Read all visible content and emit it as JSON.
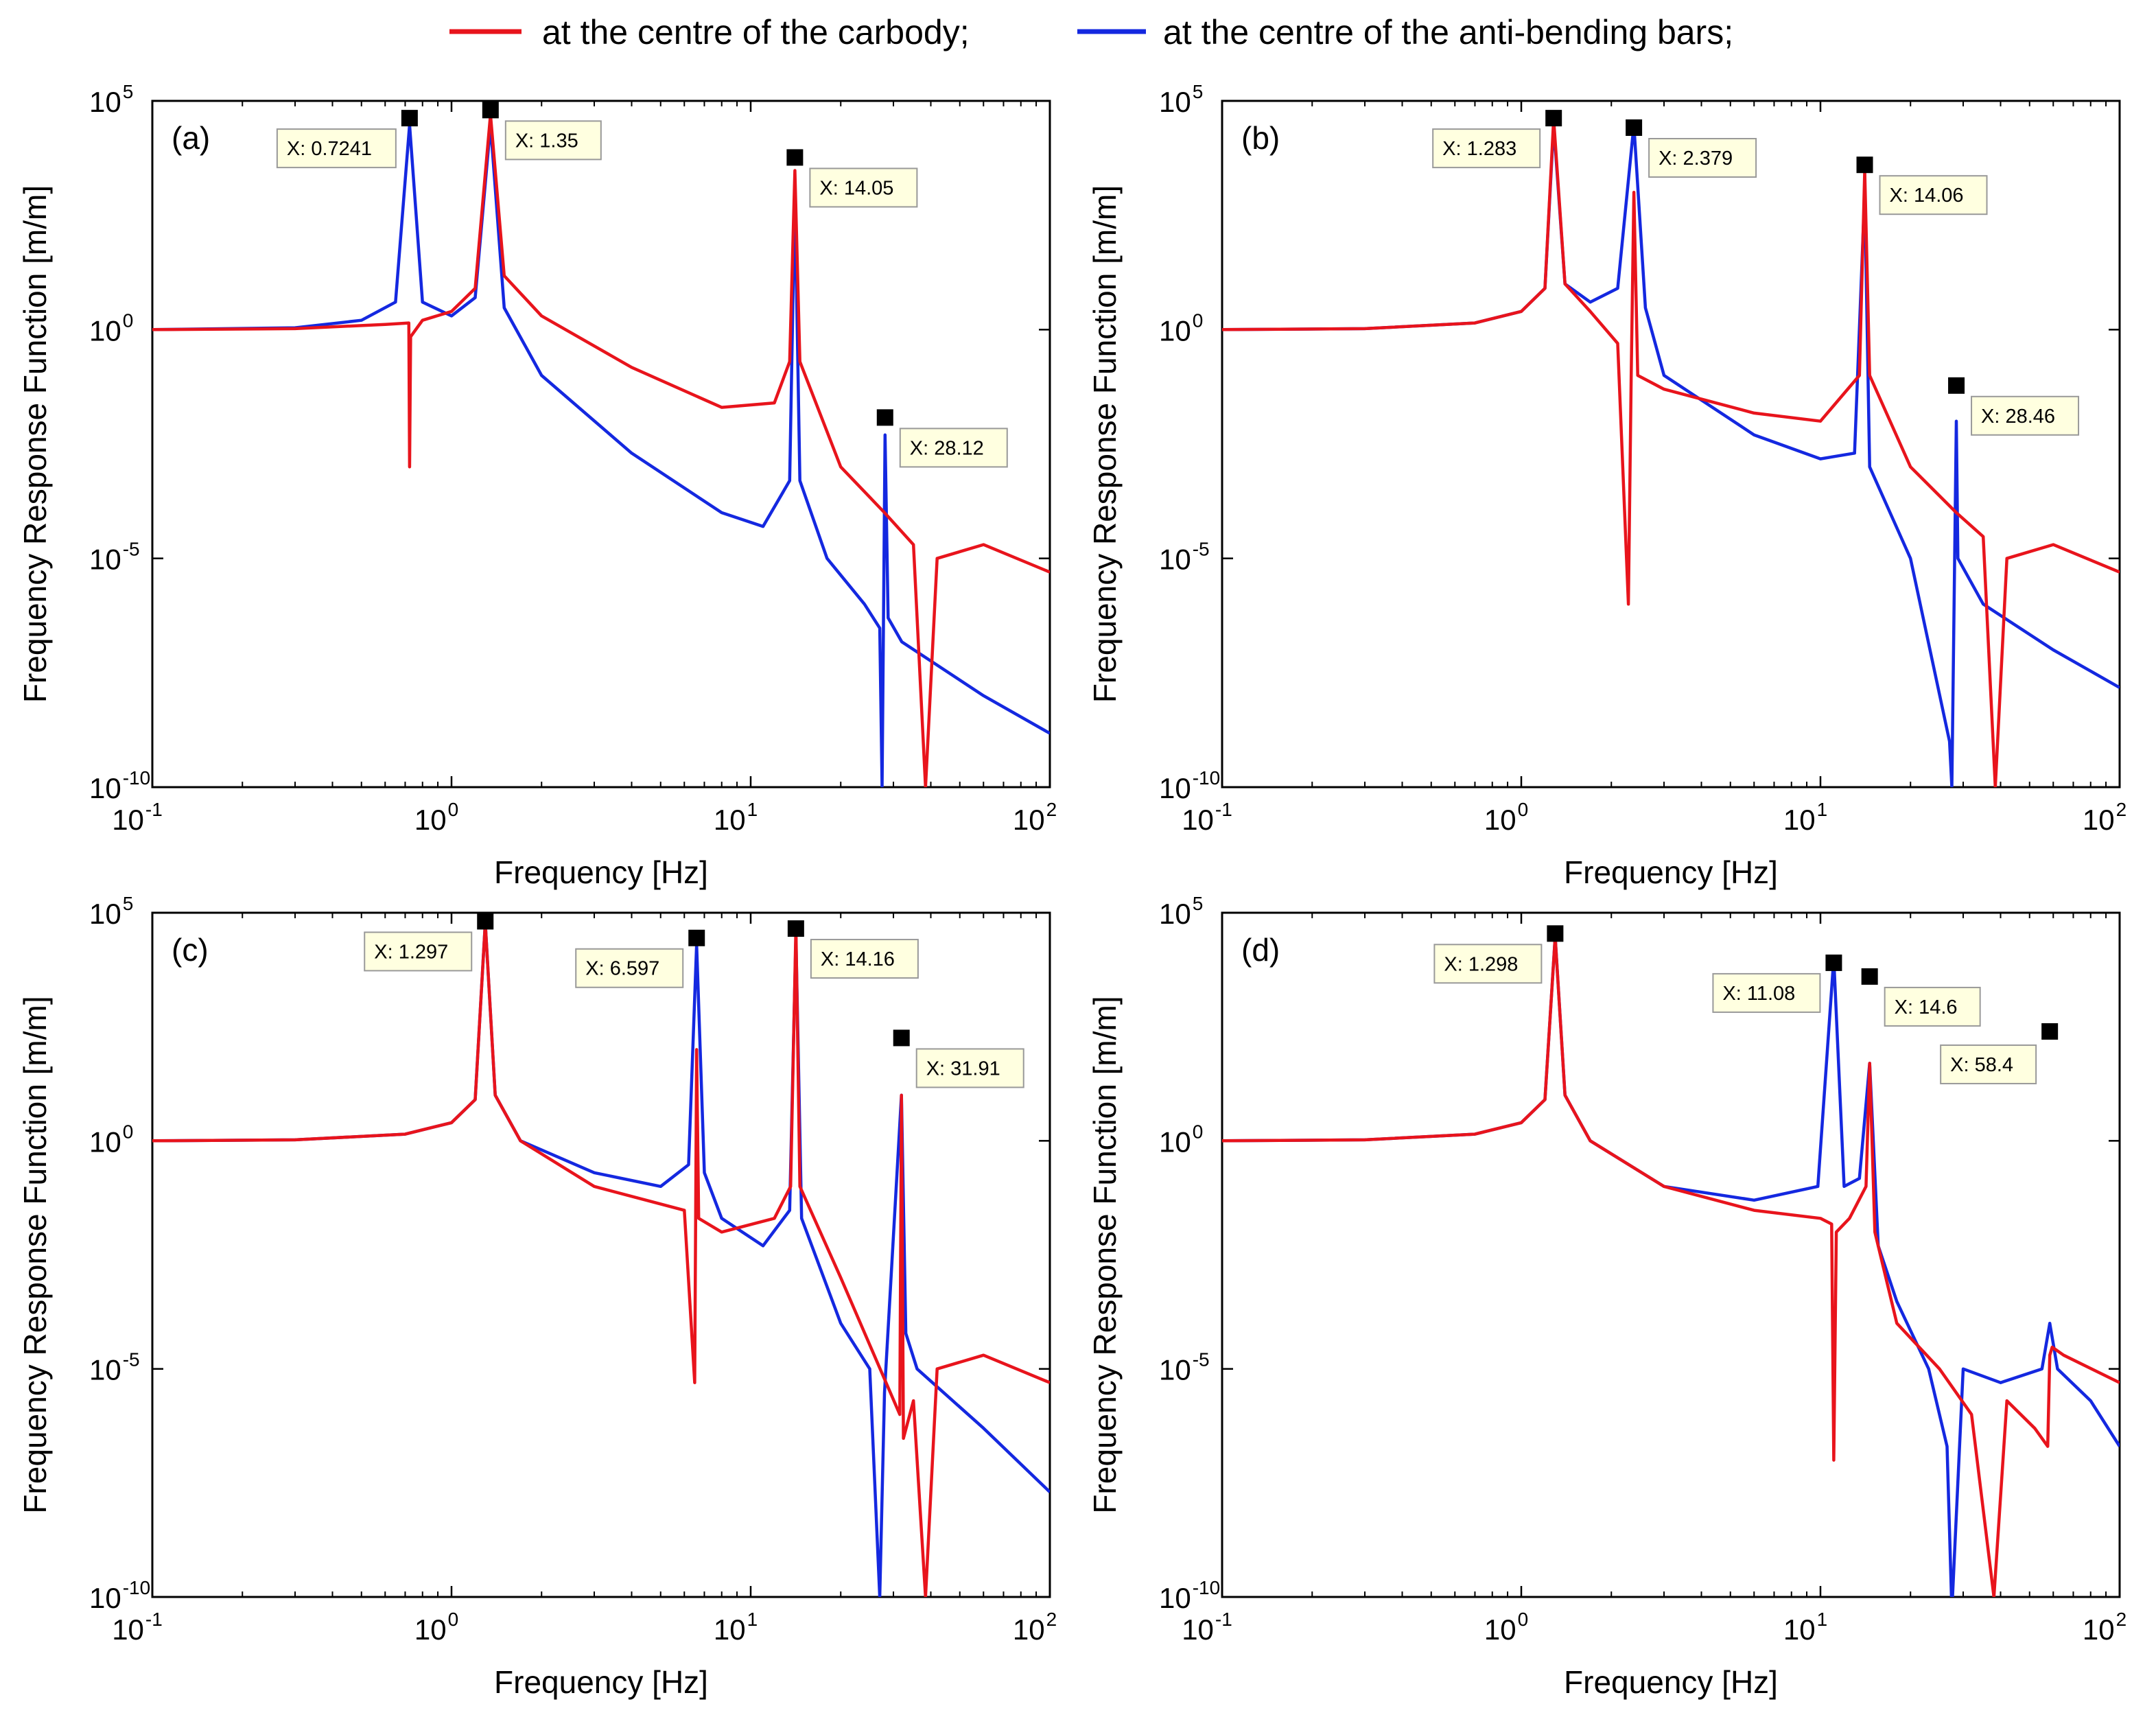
{
  "legend": {
    "items": [
      {
        "label": "at the centre of the carbody;",
        "color": "#e8141c"
      },
      {
        "label": "at the centre of the anti-bending bars;",
        "color": "#1428e0"
      }
    ]
  },
  "chart_data": [
    {
      "type": "line",
      "panel_label": "(a)",
      "xlabel": "Frequency [Hz]",
      "ylabel": "Frequency Response Function [m/m]",
      "xscale": "log",
      "yscale": "log",
      "xlim": [
        0.1,
        100
      ],
      "ylim": [
        1e-10,
        100000
      ],
      "x_ticks": [
        0.1,
        1,
        10,
        100
      ],
      "y_ticks": [
        1e-10,
        1e-05,
        1,
        100000
      ],
      "grid": false,
      "series": [
        {
          "name": "at the centre of the carbody;",
          "color": "#e8141c",
          "x": [
            0.1,
            0.3,
            0.6,
            0.72,
            0.7241,
            0.73,
            0.8,
            1.0,
            1.2,
            1.35,
            1.5,
            2,
            4,
            8,
            12,
            13.5,
            14.05,
            14.6,
            20,
            28,
            35,
            38.4,
            42,
            60,
            100
          ],
          "y": [
            1.0,
            1.05,
            1.3,
            1.4,
            0.001,
            0.7,
            1.6,
            2.5,
            8,
            50000,
            15,
            2,
            0.15,
            0.02,
            0.025,
            0.2,
            3000,
            0.2,
            0.001,
            0.0001,
            2e-05,
            1e-10,
            1e-05,
            2e-05,
            5e-06
          ]
        },
        {
          "name": "at the centre of the anti-bending bars;",
          "color": "#1428e0",
          "x": [
            0.1,
            0.3,
            0.5,
            0.65,
            0.7241,
            0.8,
            1.0,
            1.2,
            1.35,
            1.5,
            2,
            4,
            8,
            11,
            13.5,
            14.05,
            14.6,
            18,
            24,
            27,
            27.5,
            28.12,
            28.8,
            32,
            60,
            100
          ],
          "y": [
            1.0,
            1.1,
            1.6,
            4,
            30000,
            4,
            2,
            5,
            30000,
            3,
            0.1,
            0.002,
            0.0001,
            5e-05,
            0.0005,
            1000,
            0.0005,
            1e-05,
            1e-06,
            3e-07,
            1e-10,
            0.005,
            5e-07,
            1.5e-07,
            1e-08,
            1.5e-09
          ]
        }
      ],
      "datatips": [
        {
          "label": "X: 0.7241",
          "x": 0.7241,
          "y": 42000
        },
        {
          "label": "X: 1.35",
          "x": 1.35,
          "y": 63000
        },
        {
          "label": "X: 14.05",
          "x": 14.05,
          "y": 5800
        },
        {
          "label": "X: 28.12",
          "x": 28.12,
          "y": 0.012
        }
      ]
    },
    {
      "type": "line",
      "panel_label": "(b)",
      "xlabel": "Frequency [Hz]",
      "ylabel": "Frequency Response Function [m/m]",
      "xscale": "log",
      "yscale": "log",
      "xlim": [
        0.1,
        100
      ],
      "ylim": [
        1e-10,
        100000
      ],
      "x_ticks": [
        0.1,
        1,
        10,
        100
      ],
      "y_ticks": [
        1e-10,
        1e-05,
        1,
        100000
      ],
      "grid": false,
      "series": [
        {
          "name": "at the centre of the carbody;",
          "color": "#e8141c",
          "x": [
            0.1,
            0.3,
            0.7,
            1.0,
            1.2,
            1.283,
            1.4,
            1.7,
            2.1,
            2.28,
            2.33,
            2.379,
            2.45,
            3,
            6,
            10,
            13.5,
            14.06,
            14.6,
            20,
            28.46,
            35,
            38.4,
            42,
            60,
            100
          ],
          "y": [
            1.0,
            1.05,
            1.4,
            2.5,
            8,
            40000,
            10,
            2.5,
            0.5,
            1e-06,
            0.1,
            1000,
            0.1,
            0.05,
            0.015,
            0.01,
            0.1,
            3000,
            0.1,
            0.001,
            0.0001,
            3e-05,
            1e-10,
            1e-05,
            2e-05,
            5e-06
          ]
        },
        {
          "name": "at the centre of the anti-bending bars;",
          "color": "#1428e0",
          "x": [
            0.1,
            0.3,
            0.7,
            1.0,
            1.2,
            1.283,
            1.4,
            1.7,
            2.1,
            2.379,
            2.6,
            3,
            6,
            10,
            13,
            14.06,
            14.6,
            20,
            27.0,
            27.5,
            28.46,
            28.8,
            35,
            60,
            100
          ],
          "y": [
            1.0,
            1.05,
            1.4,
            2.5,
            8,
            30000,
            10,
            4,
            8,
            30000,
            3,
            0.1,
            0.005,
            0.0015,
            0.002,
            1000,
            0.001,
            1e-05,
            1e-09,
            1e-10,
            0.01,
            1e-05,
            1e-06,
            1e-07,
            1.5e-08
          ]
        }
      ],
      "datatips": [
        {
          "label": "X: 1.283",
          "x": 1.283,
          "y": 42000
        },
        {
          "label": "X: 2.379",
          "x": 2.379,
          "y": 26000
        },
        {
          "label": "X: 14.06",
          "x": 14.06,
          "y": 4000
        },
        {
          "label": "X: 28.46",
          "x": 28.46,
          "y": 0.06
        }
      ]
    },
    {
      "type": "line",
      "panel_label": "(c)",
      "xlabel": "Frequency [Hz]",
      "ylabel": "Frequency Response Function [m/m]",
      "xscale": "log",
      "yscale": "log",
      "xlim": [
        0.1,
        100
      ],
      "ylim": [
        1e-10,
        100000
      ],
      "x_ticks": [
        0.1,
        1,
        10,
        100
      ],
      "y_ticks": [
        1e-10,
        1e-05,
        1,
        100000
      ],
      "grid": false,
      "series": [
        {
          "name": "at the centre of the carbody;",
          "color": "#e8141c",
          "x": [
            0.1,
            0.3,
            0.7,
            1.0,
            1.2,
            1.297,
            1.4,
            1.7,
            3,
            6,
            6.5,
            6.597,
            6.7,
            8,
            12,
            13.6,
            14.16,
            14.6,
            20,
            31.5,
            31.91,
            32.4,
            35,
            38.4,
            42,
            60,
            100
          ],
          "y": [
            1.0,
            1.05,
            1.4,
            2.5,
            8,
            60000,
            10,
            1,
            0.1,
            0.03,
            5e-06,
            100,
            0.02,
            0.01,
            0.02,
            0.1,
            50000,
            0.1,
            0.001,
            1e-06,
            10,
            3e-07,
            2e-06,
            1e-10,
            1e-05,
            2e-05,
            5e-06
          ]
        },
        {
          "name": "at the centre of the anti-bending bars;",
          "color": "#1428e0",
          "x": [
            0.1,
            0.3,
            0.7,
            1.0,
            1.2,
            1.297,
            1.4,
            1.7,
            3,
            5,
            6.2,
            6.597,
            7,
            8,
            11,
            13.5,
            14.16,
            14.8,
            20,
            25,
            27.0,
            28,
            31.91,
            33,
            36,
            60,
            100
          ],
          "y": [
            1.0,
            1.05,
            1.4,
            2.5,
            8,
            60000,
            10,
            1,
            0.2,
            0.1,
            0.3,
            20000,
            0.2,
            0.02,
            0.005,
            0.03,
            30000,
            0.02,
            0.0001,
            1e-05,
            1e-10,
            3e-06,
            10,
            6e-05,
            1e-05,
            5e-07,
            2e-08
          ]
        }
      ],
      "datatips": [
        {
          "label": "X: 1.297",
          "x": 1.297,
          "y": 65000
        },
        {
          "label": "X: 6.597",
          "x": 6.597,
          "y": 28000
        },
        {
          "label": "X: 14.16",
          "x": 14.16,
          "y": 45000
        },
        {
          "label": "X: 31.91",
          "x": 31.91,
          "y": 180
        }
      ]
    },
    {
      "type": "line",
      "panel_label": "(d)",
      "xlabel": "Frequency [Hz]",
      "ylabel": "Frequency Response Function [m/m]",
      "xscale": "log",
      "yscale": "log",
      "xlim": [
        0.1,
        100
      ],
      "ylim": [
        1e-10,
        100000
      ],
      "x_ticks": [
        0.1,
        1,
        10,
        100
      ],
      "y_ticks": [
        1e-10,
        1e-05,
        1,
        100000
      ],
      "grid": false,
      "series": [
        {
          "name": "at the centre of the carbody;",
          "color": "#e8141c",
          "x": [
            0.1,
            0.3,
            0.7,
            1.0,
            1.2,
            1.298,
            1.4,
            1.7,
            3,
            6,
            10,
            10.9,
            11.08,
            11.3,
            12.5,
            14.2,
            14.6,
            15.2,
            18,
            25,
            32,
            38.0,
            42,
            52,
            57.5,
            58.4,
            59.5,
            65,
            100
          ],
          "y": [
            1.0,
            1.05,
            1.4,
            2.5,
            8,
            30000,
            10,
            1,
            0.1,
            0.03,
            0.02,
            0.015,
            1e-07,
            0.01,
            0.02,
            0.1,
            50,
            0.01,
            0.0001,
            1e-05,
            1e-06,
            1e-10,
            2e-06,
            5e-07,
            2e-07,
            2e-05,
            3e-05,
            2e-05,
            5e-06
          ]
        },
        {
          "name": "at the centre of the anti-bending bars;",
          "color": "#1428e0",
          "x": [
            0.1,
            0.3,
            0.7,
            1.0,
            1.2,
            1.298,
            1.4,
            1.7,
            3,
            6,
            9.8,
            11.08,
            12.0,
            13.5,
            14.6,
            15.6,
            18,
            23,
            26.5,
            27.5,
            30,
            40,
            55,
            58.4,
            62,
            80,
            100
          ],
          "y": [
            1.0,
            1.05,
            1.4,
            2.5,
            8,
            30000,
            10,
            1,
            0.1,
            0.05,
            0.1,
            10000,
            0.1,
            0.15,
            50,
            0.005,
            0.0003,
            1e-05,
            2e-07,
            5e-11,
            1e-05,
            5e-06,
            1e-05,
            0.0001,
            1e-05,
            2e-06,
            2e-07
          ]
        }
      ],
      "datatips": [
        {
          "label": "X: 1.298",
          "x": 1.298,
          "y": 35000
        },
        {
          "label": "X: 11.08",
          "x": 11.08,
          "y": 8000
        },
        {
          "label": "X: 14.6",
          "x": 14.6,
          "y": 4000
        },
        {
          "label": "X: 58.4",
          "x": 58.4,
          "y": 250
        }
      ]
    }
  ]
}
